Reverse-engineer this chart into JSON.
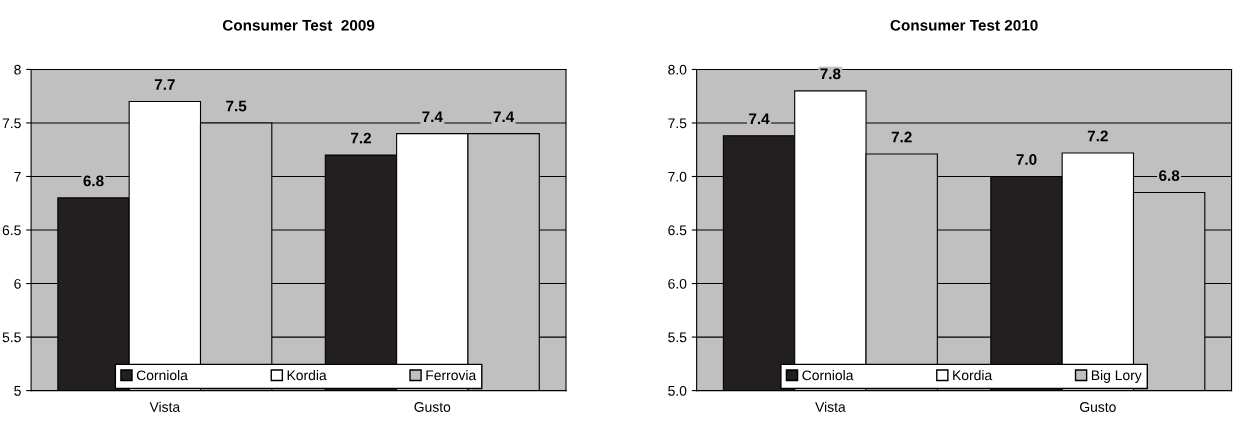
{
  "chart_data": [
    {
      "type": "bar",
      "title": "Consumer Test  2009",
      "categories": [
        "Vista",
        "Gusto"
      ],
      "series": [
        {
          "name": "Corniola",
          "color": "#231f20",
          "values": [
            6.8,
            7.2
          ]
        },
        {
          "name": "Kordia",
          "color": "#ffffff",
          "values": [
            7.7,
            7.4
          ]
        },
        {
          "name": "Ferrovia",
          "color": "#c0c0c0",
          "values": [
            7.5,
            7.4
          ]
        }
      ],
      "ylim": [
        5,
        8
      ],
      "yticks": [
        5,
        5.5,
        6,
        6.5,
        7,
        7.5,
        8
      ],
      "grid": "y",
      "legend": "bottom",
      "data_labels": true
    },
    {
      "type": "bar",
      "title": "Consumer Test 2010",
      "categories": [
        "Vista",
        "Gusto"
      ],
      "series": [
        {
          "name": "Corniola",
          "color": "#231f20",
          "values": [
            7.38,
            7.0
          ],
          "value_labels": [
            "7.4",
            "7.0"
          ]
        },
        {
          "name": "Kordia",
          "color": "#ffffff",
          "values": [
            7.8,
            7.22
          ],
          "value_labels": [
            "7.8",
            "7.2"
          ]
        },
        {
          "name": "Big Lory",
          "color": "#c0c0c0",
          "values": [
            7.21,
            6.85
          ],
          "value_labels": [
            "7.2",
            "6.8"
          ]
        }
      ],
      "ylim": [
        5,
        8
      ],
      "yticks": [
        {
          "value": 5,
          "label": "5.0"
        },
        {
          "value": 5.5,
          "label": "5.5"
        },
        {
          "value": 6,
          "label": "6.0"
        },
        {
          "value": 6.5,
          "label": "6.5"
        },
        {
          "value": 7,
          "label": "7.0"
        },
        {
          "value": 7.5,
          "label": "7.5"
        },
        {
          "value": 8,
          "label": "8.0"
        }
      ],
      "grid": "y",
      "legend": "bottom"
    }
  ]
}
